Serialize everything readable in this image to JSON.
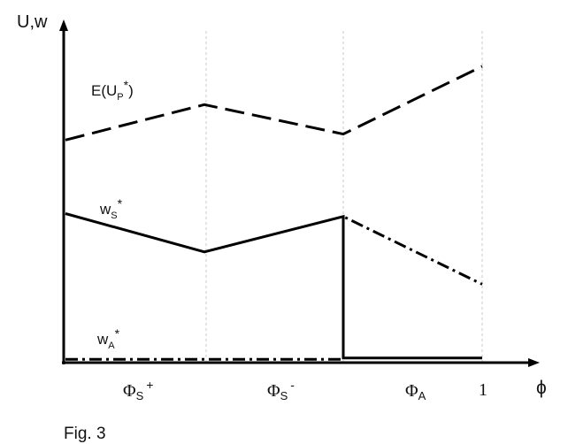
{
  "chart_data": {
    "type": "line",
    "ylabel": "U,w",
    "xlabel": "ϕ",
    "x_end_label": "1",
    "figure_caption": "Fig. 3",
    "regions": [
      {
        "name": "Φ",
        "sub": "S",
        "sup": "+"
      },
      {
        "name": "Φ",
        "sub": "S",
        "sup": "-"
      },
      {
        "name": "Φ",
        "sub": "A",
        "sup": ""
      }
    ],
    "boundaries": [
      0.3333,
      0.6667,
      1
    ],
    "ylim": [
      0,
      1
    ],
    "series": [
      {
        "label": {
          "base": "E(U",
          "sub": "P",
          "sup": "*",
          "tail": ")"
        },
        "style": "dashed",
        "points": [
          [
            0,
            0.75
          ],
          [
            0.3333,
            0.87
          ],
          [
            0.6667,
            0.77
          ],
          [
            1,
            1.0
          ]
        ]
      },
      {
        "label": {
          "base": "w",
          "sub": "S",
          "sup": "*",
          "tail": ""
        },
        "style": "solid",
        "points": [
          [
            0,
            0.5
          ],
          [
            0.3333,
            0.37
          ],
          [
            0.6667,
            0.49
          ],
          [
            0.6667,
            0.01
          ],
          [
            1,
            0.01
          ]
        ]
      },
      {
        "label": {
          "base": "w",
          "sub": "A",
          "sup": "*",
          "tail": ""
        },
        "style": "dash-dot",
        "points": [
          [
            0,
            0.005
          ],
          [
            0.6667,
            0.005
          ],
          [
            0.6667,
            0.49
          ],
          [
            1,
            0.26
          ]
        ]
      }
    ]
  }
}
